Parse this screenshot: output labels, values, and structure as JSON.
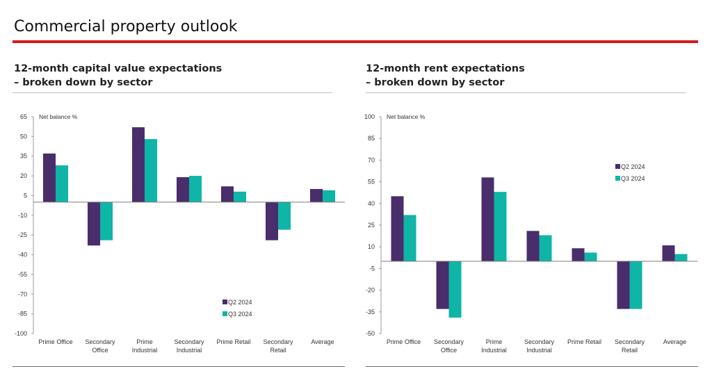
{
  "page": {
    "title": "Commercial property outlook",
    "accent_color": "#d7191c"
  },
  "charts": [
    {
      "heading_line1": "12-month capital value expectations",
      "heading_line2": "– broken down by sector"
    },
    {
      "heading_line1": "12-month rent expectations",
      "heading_line2": "– broken down by sector"
    }
  ],
  "chart_data": [
    {
      "type": "bar",
      "ylabel": "Net balance %",
      "ylim": [
        -100,
        65
      ],
      "yticks": [
        65,
        50,
        35,
        20,
        5,
        -10,
        -25,
        -40,
        -55,
        -70,
        -85,
        -100
      ],
      "categories": [
        [
          "Prime Office"
        ],
        [
          "Secondary",
          "Office"
        ],
        [
          "Prime",
          "Industrial"
        ],
        [
          "Secondary",
          "Industrial"
        ],
        [
          "Prime Retail"
        ],
        [
          "Secondary",
          "Retail"
        ],
        [
          "Average"
        ]
      ],
      "series": [
        {
          "name": "Q2 2024",
          "color": "#4a2d6b",
          "values": [
            37,
            -33,
            57,
            19,
            12,
            -29,
            10
          ]
        },
        {
          "name": "Q3 2024",
          "color": "#0fb5a6",
          "values": [
            28,
            -29,
            48,
            20,
            8,
            -21,
            9
          ]
        }
      ],
      "legend_position": "bottom-right"
    },
    {
      "type": "bar",
      "ylabel": "Net balance %",
      "ylim": [
        -50,
        100
      ],
      "yticks": [
        100,
        85,
        70,
        55,
        40,
        25,
        10,
        -5,
        -20,
        -35,
        -50
      ],
      "categories": [
        [
          "Prime Office"
        ],
        [
          "Secondary",
          "Office"
        ],
        [
          "Prime",
          "Industrial"
        ],
        [
          "Secondary",
          "Industrial"
        ],
        [
          "Prime Retail"
        ],
        [
          "Secondary",
          "Retail"
        ],
        [
          "Average"
        ]
      ],
      "series": [
        {
          "name": "Q2 2024",
          "color": "#4a2d6b",
          "values": [
            45,
            -33,
            58,
            21,
            9,
            -33,
            11
          ]
        },
        {
          "name": "Q3 2024",
          "color": "#0fb5a6",
          "values": [
            32,
            -39,
            48,
            18,
            6,
            -33,
            5
          ]
        }
      ],
      "legend_position": "top-right"
    }
  ]
}
